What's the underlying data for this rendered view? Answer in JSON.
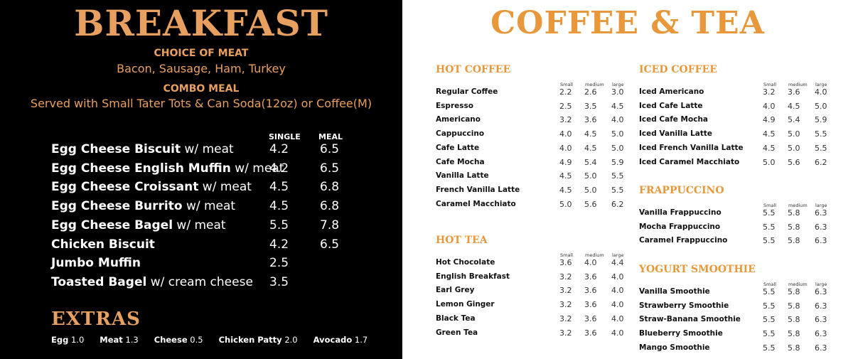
{
  "breakfast": {
    "title": "BREAKFAST",
    "meat_header": "CHOICE OF MEAT",
    "meat_options": "Bacon, Sausage, Ham, Turkey",
    "combo_header": "COMBO MEAL",
    "combo_desc": "Served with Small Tater Tots & Can Soda(12oz) or Coffee(M)",
    "col_single": "SINGLE",
    "col_meal": "MEAL",
    "items": [
      {
        "name": "Egg Cheese Biscuit",
        "suffix": " w/ meat",
        "single": "4.2",
        "meal": "6.5"
      },
      {
        "name": "Egg Cheese English Muffin",
        "suffix": " w/ meat",
        "single": "4.2",
        "meal": "6.5"
      },
      {
        "name": "Egg Cheese Croissant",
        "suffix": " w/ meat",
        "single": "4.5",
        "meal": "6.8"
      },
      {
        "name": "Egg Cheese Burrito",
        "suffix": " w/ meat",
        "single": "4.5",
        "meal": "6.8"
      },
      {
        "name": "Egg Cheese Bagel",
        "suffix": " w/ meat",
        "single": "5.5",
        "meal": "7.8"
      },
      {
        "name": "Chicken Biscuit",
        "suffix": "",
        "single": "4.2",
        "meal": "6.5"
      },
      {
        "name": "Jumbo Muffin",
        "suffix": "",
        "single": "2.5",
        "meal": ""
      },
      {
        "name": "Toasted Bagel",
        "suffix": " w/ cream cheese",
        "single": "3.5",
        "meal": ""
      }
    ],
    "extras_title": "EXTRAS",
    "extras": [
      {
        "name": "Egg",
        "price": "1.0"
      },
      {
        "name": "Meat",
        "price": "1.3"
      },
      {
        "name": "Cheese",
        "price": "0.5"
      },
      {
        "name": "Chicken Patty",
        "price": "2.0"
      },
      {
        "name": "Avocado",
        "price": "1.7"
      }
    ]
  },
  "drinks": {
    "title": "COFFEE & TEA",
    "sizes": [
      "Small",
      "medium",
      "large"
    ],
    "sections": [
      {
        "title": "HOT COFFEE",
        "items": [
          {
            "name": "Regular Coffee",
            "prices": [
              "2.2",
              "2.6",
              "3.0"
            ]
          },
          {
            "name": "Espresso",
            "prices": [
              "2.5",
              "3.5",
              "4.5"
            ]
          },
          {
            "name": "Americano",
            "prices": [
              "3.2",
              "3.6",
              "4.0"
            ]
          },
          {
            "name": "Cappuccino",
            "prices": [
              "4.0",
              "4.5",
              "5.0"
            ]
          },
          {
            "name": "Cafe Latte",
            "prices": [
              "4.0",
              "4.5",
              "5.0"
            ]
          },
          {
            "name": "Cafe Mocha",
            "prices": [
              "4.9",
              "5.4",
              "5.9"
            ]
          },
          {
            "name": "Vanilla Latte",
            "prices": [
              "4.5",
              "5.0",
              "5.5"
            ]
          },
          {
            "name": "French Vanilla Latte",
            "prices": [
              "4.5",
              "5.0",
              "5.5"
            ]
          },
          {
            "name": "Caramel Macchiato",
            "prices": [
              "5.0",
              "5.6",
              "6.2"
            ]
          }
        ]
      },
      {
        "title": "HOT TEA",
        "items": [
          {
            "name": "Hot Chocolate",
            "prices": [
              "3.6",
              "4.0",
              "4.4"
            ]
          },
          {
            "name": "English Breakfast",
            "prices": [
              "3.2",
              "3.6",
              "4.0"
            ]
          },
          {
            "name": "Earl Grey",
            "prices": [
              "3.2",
              "3.6",
              "4.0"
            ]
          },
          {
            "name": "Lemon Ginger",
            "prices": [
              "3.2",
              "3.6",
              "4.0"
            ]
          },
          {
            "name": "Black Tea",
            "prices": [
              "3.2",
              "3.6",
              "4.0"
            ]
          },
          {
            "name": "Green Tea",
            "prices": [
              "3.2",
              "3.6",
              "4.0"
            ]
          }
        ]
      },
      {
        "title": "ICED COFFEE",
        "items": [
          {
            "name": "Iced Americano",
            "prices": [
              "3.2",
              "3.6",
              "4.0"
            ]
          },
          {
            "name": "Iced Cafe Latte",
            "prices": [
              "4.0",
              "4.5",
              "5.0"
            ]
          },
          {
            "name": "Iced Cafe Mocha",
            "prices": [
              "4.9",
              "5.4",
              "5.9"
            ]
          },
          {
            "name": "Iced Vanilla Latte",
            "prices": [
              "4.5",
              "5.0",
              "5.5"
            ]
          },
          {
            "name": "Iced French Vanilla Latte",
            "prices": [
              "4.5",
              "5.0",
              "5.5"
            ]
          },
          {
            "name": "Iced Caramel Macchiato",
            "prices": [
              "5.0",
              "5.6",
              "6.2"
            ]
          }
        ]
      },
      {
        "title": "FRAPPUCCINO",
        "items": [
          {
            "name": "Vanilla Frappuccino",
            "prices": [
              "5.5",
              "5.8",
              "6.3"
            ]
          },
          {
            "name": "Mocha Frappuccino",
            "prices": [
              "5.5",
              "5.8",
              "6.3"
            ]
          },
          {
            "name": "Caramel Frappuccino",
            "prices": [
              "5.5",
              "5.8",
              "6.3"
            ]
          }
        ]
      },
      {
        "title": "YOGURT SMOOTHIE",
        "items": [
          {
            "name": "Vanilla Smoothie",
            "prices": [
              "5.5",
              "5.8",
              "6.3"
            ]
          },
          {
            "name": "Strawberry Smoothie",
            "prices": [
              "5.5",
              "5.8",
              "6.3"
            ]
          },
          {
            "name": "Straw-Banana Smoothie",
            "prices": [
              "5.5",
              "5.8",
              "6.3"
            ]
          },
          {
            "name": "Blueberry Smoothie",
            "prices": [
              "5.5",
              "5.8",
              "6.3"
            ]
          },
          {
            "name": "Mango  Smoothie",
            "prices": [
              "5.5",
              "5.8",
              "6.3"
            ]
          }
        ]
      }
    ]
  },
  "colors": {
    "accent_breakfast": "#e8a060",
    "accent_drinks": "#e8983a",
    "panel_dark": "#000000"
  }
}
